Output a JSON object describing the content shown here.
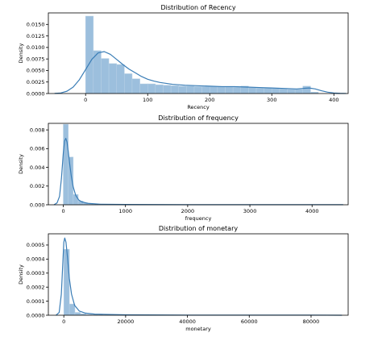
{
  "chart_data": [
    {
      "type": "histogram",
      "title": "Distribution of Recency",
      "xlabel": "Recency",
      "ylabel": "Density",
      "xlim": [
        -60,
        423
      ],
      "ylim": [
        0,
        0.0175
      ],
      "xticks": [
        0,
        100,
        200,
        300,
        400
      ],
      "xtick_labels": [
        "0",
        "100",
        "200",
        "300",
        "400"
      ],
      "yticks": [
        0,
        0.0025,
        0.005,
        0.0075,
        0.01,
        0.0125,
        0.015
      ],
      "ytick_labels": [
        "0.0000",
        "0.0025",
        "0.0050",
        "0.0075",
        "0.0100",
        "0.0125",
        "0.0150"
      ],
      "bin_edges": [
        0,
        12.5,
        25,
        37.5,
        50,
        62.5,
        75,
        87.5,
        100,
        112.5,
        125,
        137.5,
        150,
        162.5,
        175,
        187.5,
        200,
        212.5,
        225,
        237.5,
        250,
        262.5,
        275,
        287.5,
        300,
        312.5,
        325,
        337.5,
        350,
        362.5,
        375
      ],
      "bar_values": [
        0.0168,
        0.0093,
        0.0076,
        0.0065,
        0.0063,
        0.0043,
        0.0032,
        0.0021,
        0.0021,
        0.0019,
        0.0018,
        0.0017,
        0.0016,
        0.0016,
        0.0015,
        0.0015,
        0.0015,
        0.0015,
        0.0015,
        0.0014,
        0.0016,
        0.0013,
        0.0012,
        0.0012,
        0.0011,
        0.001,
        0.0009,
        0.0009,
        0.0016,
        0.0003
      ],
      "kde_x": [
        -50,
        -40,
        -30,
        -20,
        -10,
        0,
        10,
        20,
        30,
        40,
        50,
        60,
        70,
        80,
        90,
        100,
        110,
        120,
        140,
        160,
        180,
        200,
        220,
        240,
        260,
        280,
        300,
        320,
        340,
        350,
        360,
        370,
        380,
        390,
        400,
        410,
        420
      ],
      "kde_y": [
        2e-05,
        0.00012,
        0.0005,
        0.0014,
        0.003,
        0.0052,
        0.0074,
        0.0088,
        0.0091,
        0.0085,
        0.0074,
        0.0063,
        0.0053,
        0.0045,
        0.0037,
        0.0031,
        0.0027,
        0.0024,
        0.002,
        0.0018,
        0.0017,
        0.0016,
        0.0015,
        0.0015,
        0.0014,
        0.0013,
        0.0012,
        0.0011,
        0.001,
        0.0011,
        0.0012,
        0.001,
        0.0006,
        0.0003,
        0.00012,
        4e-05,
        1e-05
      ]
    },
    {
      "type": "histogram",
      "title": "Distribution of frequency",
      "xlabel": "frequency",
      "ylabel": "Density",
      "xlim": [
        -240,
        4580
      ],
      "ylim": [
        0,
        0.0087
      ],
      "xticks": [
        0,
        1000,
        2000,
        3000,
        4000
      ],
      "xtick_labels": [
        "0",
        "1000",
        "2000",
        "3000",
        "4000"
      ],
      "yticks": [
        0,
        0.002,
        0.004,
        0.006,
        0.008
      ],
      "ytick_labels": [
        "0.000",
        "0.002",
        "0.004",
        "0.006",
        "0.008"
      ],
      "bin_edges": [
        0,
        80,
        160,
        240,
        320,
        400,
        480,
        560
      ],
      "bar_values": [
        0.0086,
        0.0051,
        0.0011,
        0.0004,
        0.0002,
        0.0001,
        5e-05
      ],
      "kde_x": [
        -150,
        -100,
        -60,
        -30,
        0,
        20,
        40,
        60,
        80,
        100,
        130,
        160,
        200,
        250,
        300,
        400,
        600,
        1000,
        2000,
        3000,
        4000,
        4500
      ],
      "kde_y": [
        0,
        0.0002,
        0.0009,
        0.0028,
        0.0055,
        0.0068,
        0.0071,
        0.0067,
        0.0057,
        0.0045,
        0.003,
        0.0019,
        0.001,
        0.0005,
        0.0003,
        0.00015,
        6e-05,
        3e-05,
        1e-05,
        1e-05,
        1e-05,
        1e-05
      ]
    },
    {
      "type": "histogram",
      "title": "Distribution of monetary",
      "xlabel": "monetary",
      "ylabel": "Density",
      "xlim": [
        -5000,
        92000
      ],
      "ylim": [
        0,
        0.00058
      ],
      "xticks": [
        0,
        20000,
        40000,
        60000,
        80000
      ],
      "xtick_labels": [
        "0",
        "20000",
        "40000",
        "60000",
        "80000"
      ],
      "yticks": [
        0,
        0.0001,
        0.0002,
        0.0003,
        0.0004,
        0.0005
      ],
      "ytick_labels": [
        "0.0000",
        "0.0001",
        "0.0002",
        "0.0003",
        "0.0004",
        "0.0005"
      ],
      "bin_edges": [
        0,
        1800,
        3600,
        5400,
        7200,
        9000,
        10800
      ],
      "bar_values": [
        0.00047,
        8e-05,
        2e-05,
        1e-05,
        5e-06,
        3e-06
      ],
      "kde_x": [
        -2500,
        -1500,
        -800,
        -300,
        0,
        300,
        700,
        1200,
        1800,
        2500,
        3500,
        5000,
        7000,
        10000,
        20000,
        40000,
        60000,
        80000,
        90000
      ],
      "kde_y": [
        0,
        2e-05,
        0.00015,
        0.00038,
        0.00052,
        0.00055,
        0.00052,
        0.00041,
        0.00026,
        0.00015,
        7e-05,
        3e-05,
        1.5e-05,
        8e-06,
        3e-06,
        1e-06,
        1e-06,
        1e-06,
        0
      ]
    }
  ]
}
